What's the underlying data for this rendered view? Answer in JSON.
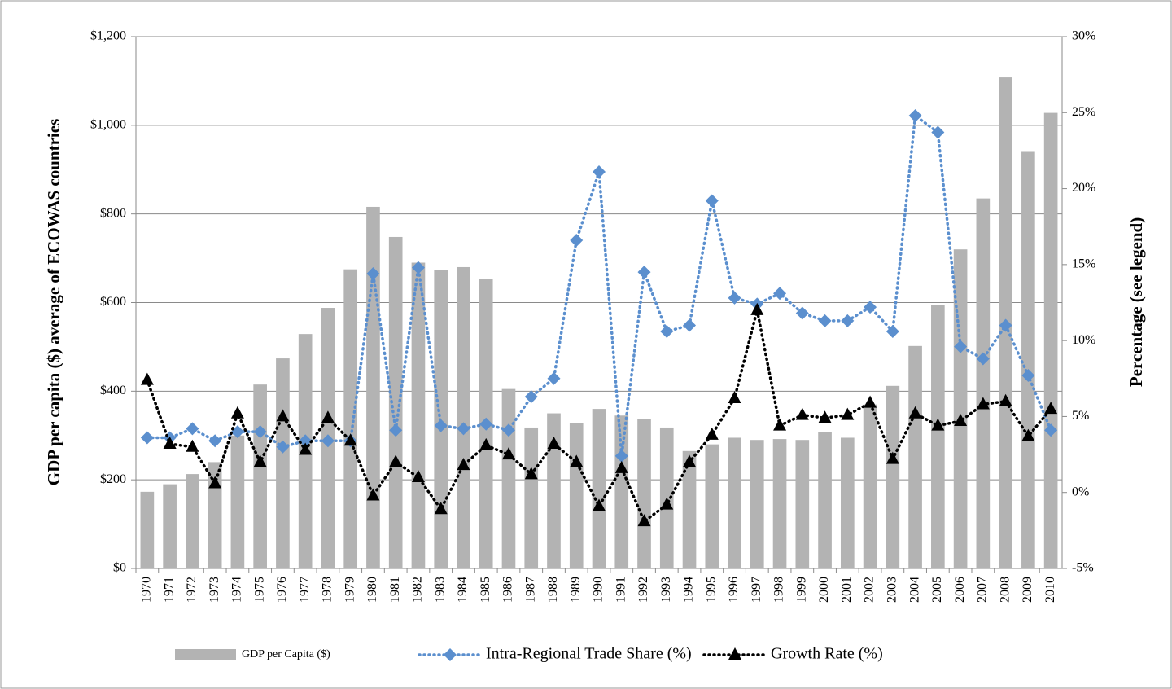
{
  "chart_data": {
    "type": "bar-line",
    "y_label": "GDP per capita ($) average of ECOWAS countries",
    "y2_label": "Percentage (see legend)",
    "categories": [
      "1970",
      "1971",
      "1972",
      "1973",
      "1974",
      "1975",
      "1976",
      "1977",
      "1978",
      "1979",
      "1980",
      "1981",
      "1982",
      "1983",
      "1984",
      "1985",
      "1986",
      "1987",
      "1988",
      "1989",
      "1990",
      "1991",
      "1992",
      "1993",
      "1994",
      "1995",
      "1996",
      "1997",
      "1998",
      "1999",
      "2000",
      "2001",
      "2002",
      "2003",
      "2004",
      "2005",
      "2006",
      "2007",
      "2008",
      "2009",
      "2010"
    ],
    "series": [
      {
        "name": "GDP per Capita ($)",
        "type": "bar",
        "color": "#b3b3b3",
        "axis": "y",
        "values": [
          173,
          190,
          213,
          240,
          300,
          415,
          474,
          529,
          588,
          675,
          816,
          748,
          690,
          673,
          680,
          653,
          405,
          318,
          350,
          328,
          360,
          345,
          337,
          318,
          265,
          280,
          295,
          290,
          292,
          290,
          307,
          295,
          370,
          412,
          502,
          595,
          720,
          835,
          1108,
          940,
          1028
        ]
      },
      {
        "name": "Intra-Regional Trade Share (%)",
        "type": "line",
        "marker": "diamond",
        "color": "#5b8fce",
        "axis": "y2",
        "values": [
          3.6,
          3.6,
          4.2,
          3.4,
          4.0,
          4.0,
          3.0,
          3.4,
          3.4,
          3.4,
          14.4,
          4.1,
          14.8,
          4.4,
          4.2,
          4.5,
          4.1,
          6.3,
          7.5,
          16.6,
          21.1,
          2.4,
          14.5,
          10.6,
          11.0,
          19.2,
          12.8,
          12.4,
          13.1,
          11.8,
          11.3,
          11.3,
          12.2,
          10.6,
          24.8,
          23.7,
          9.6,
          8.8,
          11.0,
          7.7,
          4.1
        ]
      },
      {
        "name": "Growth Rate (%)",
        "type": "line",
        "marker": "triangle",
        "color": "#000000",
        "axis": "y2",
        "values": [
          7.4,
          3.2,
          3.0,
          0.6,
          5.2,
          2.0,
          5.0,
          2.8,
          4.9,
          3.4,
          -0.2,
          2.0,
          1.0,
          -1.1,
          1.8,
          3.1,
          2.5,
          1.2,
          3.2,
          2.0,
          -0.9,
          1.6,
          -1.9,
          -0.8,
          2.0,
          3.8,
          6.2,
          12.0,
          4.4,
          5.1,
          4.9,
          5.1,
          5.9,
          2.2,
          5.2,
          4.4,
          4.7,
          5.8,
          6.0,
          3.7,
          5.5
        ]
      }
    ],
    "ylim": [
      0,
      1200
    ],
    "yticks": [
      {
        "value": 0,
        "label": "$0"
      },
      {
        "value": 200,
        "label": "$200"
      },
      {
        "value": 400,
        "label": "$400"
      },
      {
        "value": 600,
        "label": "$600"
      },
      {
        "value": 800,
        "label": "$800"
      },
      {
        "value": 1000,
        "label": "$1,000"
      },
      {
        "value": 1200,
        "label": "$1,200"
      }
    ],
    "y2lim": [
      -5,
      30
    ],
    "y2ticks": [
      {
        "value": -5,
        "label": "-5%"
      },
      {
        "value": 0,
        "label": "0%"
      },
      {
        "value": 5,
        "label": "5%"
      },
      {
        "value": 10,
        "label": "10%"
      },
      {
        "value": 15,
        "label": "15%"
      },
      {
        "value": 20,
        "label": "20%"
      },
      {
        "value": 25,
        "label": "25%"
      },
      {
        "value": 30,
        "label": "30%"
      }
    ],
    "grid": true,
    "legend": "bottom"
  }
}
